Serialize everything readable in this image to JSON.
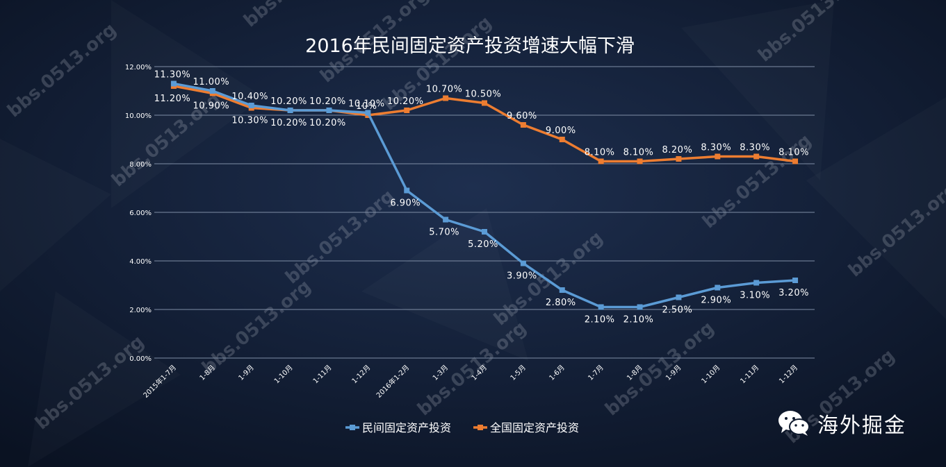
{
  "chart_data": {
    "type": "line",
    "title": "2016年民间固定资产投资增速大幅下滑",
    "categories": [
      "2015年1-7月",
      "1-8月",
      "1-9月",
      "1-10月",
      "1-11月",
      "1-12月",
      "2016年1-2月",
      "1-3月",
      "1-4月",
      "1-5月",
      "1-6月",
      "1-7月",
      "1-8月",
      "1-9月",
      "1-10月",
      "1-11月",
      "1-12月"
    ],
    "series": [
      {
        "name": "民间固定资产投资",
        "color": "#5b9bd5",
        "values": [
          11.3,
          11.0,
          10.4,
          10.2,
          10.2,
          10.1,
          6.9,
          5.7,
          5.2,
          3.9,
          2.8,
          2.1,
          2.1,
          2.5,
          2.9,
          3.1,
          3.2
        ],
        "labels": [
          "11.30%",
          "11.00%",
          "10.40%",
          "10.20%",
          "10.20%",
          "10.10%",
          "6.90%",
          "5.70%",
          "5.20%",
          "3.90%",
          "2.80%",
          "2.10%",
          "2.10%",
          "2.50%",
          "2.90%",
          "3.10%",
          "3.20%"
        ]
      },
      {
        "name": "全国固定资产投资",
        "color": "#ed7d31",
        "values": [
          11.2,
          10.9,
          10.3,
          10.2,
          10.2,
          10.0,
          10.2,
          10.7,
          10.5,
          9.6,
          9.0,
          8.1,
          8.1,
          8.2,
          8.3,
          8.3,
          8.1
        ],
        "labels": [
          "11.20%",
          "10.90%",
          "10.30%",
          "10.20%",
          "10.20%",
          "10%",
          "10.20%",
          "10.70%",
          "10.50%",
          "9.60%",
          "9.00%",
          "8.10%",
          "8.10%",
          "8.20%",
          "8.30%",
          "8.30%",
          "8.10%"
        ]
      }
    ],
    "y_ticks": [
      "0.00%",
      "2.00%",
      "4.00%",
      "6.00%",
      "8.00%",
      "10.00%",
      "12.00%"
    ],
    "ylim": [
      0,
      12
    ],
    "grid": true,
    "legend_position": "bottom"
  },
  "watermark": "bbs.0513.org",
  "brand": {
    "icon": "wechat-icon",
    "text": "海外掘金"
  },
  "colors": {
    "background": "#0f1a2e",
    "grid": "#7f8ea6",
    "text": "#ffffff"
  }
}
